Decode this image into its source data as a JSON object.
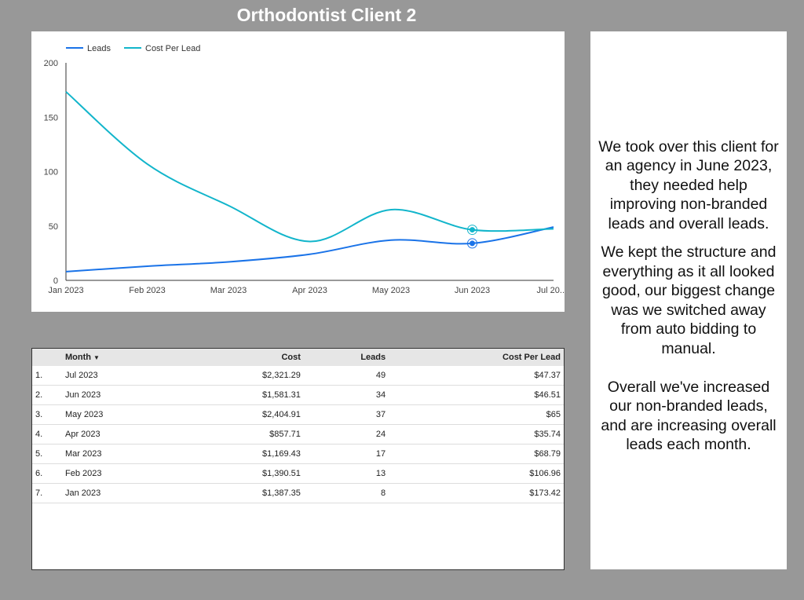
{
  "title": "Orthodontist Client 2",
  "chart_data": {
    "type": "line",
    "categories": [
      "Jan 2023",
      "Feb 2023",
      "Mar 2023",
      "Apr 2023",
      "May 2023",
      "Jun 2023",
      "Jul 20.."
    ],
    "series": [
      {
        "name": "Leads",
        "color": "#1a73e8",
        "values": [
          8,
          13,
          17,
          24,
          37,
          34,
          49
        ]
      },
      {
        "name": "Cost Per Lead",
        "color": "#12b5cb",
        "values": [
          173.42,
          106.96,
          68.79,
          35.74,
          65,
          46.51,
          47.37
        ]
      }
    ],
    "yticks": [
      "0",
      "50",
      "100",
      "150",
      "200"
    ],
    "ylim": [
      0,
      200
    ],
    "legend": "top-left",
    "grid": false,
    "highlighted_category": "Jun 2023"
  },
  "table": {
    "headers": [
      "",
      "Month",
      "Cost",
      "Leads",
      "Cost Per Lead"
    ],
    "sort_icon": "sort-down-icon",
    "rows": [
      [
        "1.",
        "Jul 2023",
        "$2,321.29",
        "49",
        "$47.37"
      ],
      [
        "2.",
        "Jun 2023",
        "$1,581.31",
        "34",
        "$46.51"
      ],
      [
        "3.",
        "May 2023",
        "$2,404.91",
        "37",
        "$65"
      ],
      [
        "4.",
        "Apr 2023",
        "$857.71",
        "24",
        "$35.74"
      ],
      [
        "5.",
        "Mar 2023",
        "$1,169.43",
        "17",
        "$68.79"
      ],
      [
        "6.",
        "Feb 2023",
        "$1,390.51",
        "13",
        "$106.96"
      ],
      [
        "7.",
        "Jan 2023",
        "$1,387.35",
        "8",
        "$173.42"
      ]
    ]
  },
  "note": {
    "paragraphs": [
      "We took over this client for an agency in June 2023, they needed help improving non-branded leads and overall leads.",
      "We kept the structure and everything as it all looked good, our biggest change was we switched away from auto bidding to manual.\n\nOverall we've increased our non-branded leads, and are increasing overall leads each month."
    ]
  }
}
